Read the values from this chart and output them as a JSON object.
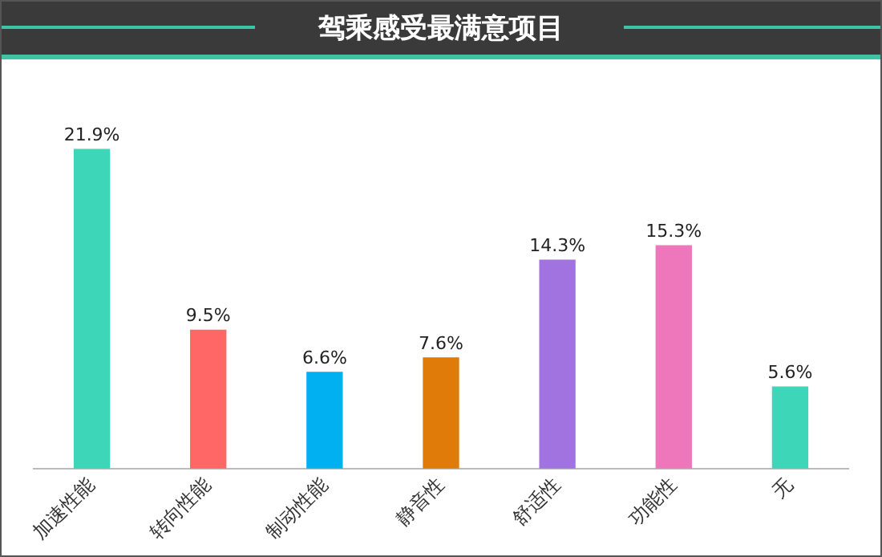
{
  "chart_data": {
    "type": "bar",
    "title": "驾乘感受最满意项目",
    "categories": [
      "加速性能",
      "转向性能",
      "制动性能",
      "静音性",
      "舒适性",
      "功能性",
      "无"
    ],
    "values": [
      21.9,
      9.5,
      6.6,
      7.6,
      14.3,
      15.3,
      5.6
    ],
    "colors": [
      "#3dd6b8",
      "#ff6666",
      "#00b0f0",
      "#e07b0a",
      "#a173e0",
      "#ee77bb",
      "#3dd6b8"
    ],
    "value_labels": [
      "21.9%",
      "9.5%",
      "6.6%",
      "7.6%",
      "14.3%",
      "15.3%",
      "5.6%"
    ],
    "tick_labels": "x",
    "grid": false,
    "legend": false
  }
}
